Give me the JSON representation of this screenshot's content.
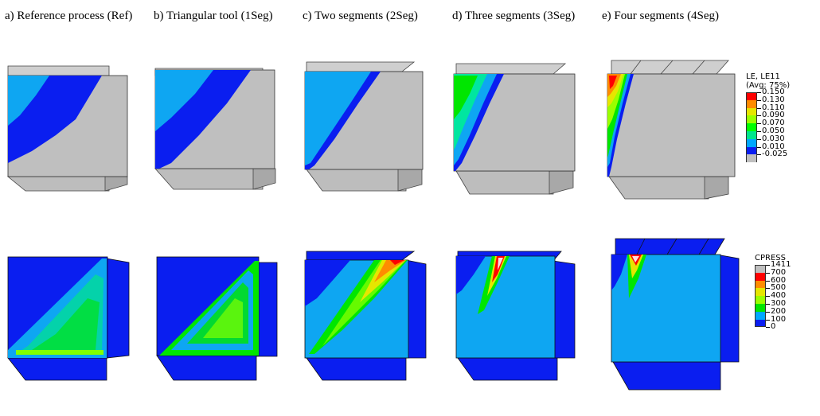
{
  "panels": [
    {
      "id": "a",
      "title": "a) Reference process (Ref)"
    },
    {
      "id": "b",
      "title": "b) Triangular tool (1Seg)"
    },
    {
      "id": "c",
      "title": "c) Two segments (2Seg)"
    },
    {
      "id": "d",
      "title": "d) Three segments (3Seg)"
    },
    {
      "id": "e",
      "title": "e) Four segments (4Seg)"
    }
  ],
  "legend_strain": {
    "title_line1": "LE, LE11",
    "title_line2": "(Avg: 75%)",
    "levels": [
      {
        "label": "0.150",
        "color": "#ff0000"
      },
      {
        "label": "0.130",
        "color": "#ff8c00"
      },
      {
        "label": "0.110",
        "color": "#e6e600"
      },
      {
        "label": "0.090",
        "color": "#9aff00"
      },
      {
        "label": "0.070",
        "color": "#00ff00"
      },
      {
        "label": "0.050",
        "color": "#00e68c"
      },
      {
        "label": "0.030",
        "color": "#00a8ff"
      },
      {
        "label": "0.010",
        "color": "#0a1ef0"
      },
      {
        "label": "-0.025",
        "color": "#bfbfbf"
      }
    ]
  },
  "legend_pressure": {
    "title_line1": "CPRESS",
    "levels": [
      {
        "label": "1411",
        "color": "#bfbfbf"
      },
      {
        "label": "700",
        "color": "#ff0000"
      },
      {
        "label": "600",
        "color": "#ff8c00"
      },
      {
        "label": "500",
        "color": "#e6e600"
      },
      {
        "label": "400",
        "color": "#9aff00"
      },
      {
        "label": "300",
        "color": "#00e600"
      },
      {
        "label": "200",
        "color": "#00a8ff"
      },
      {
        "label": "100",
        "color": "#0a1ef0"
      },
      {
        "label": "0",
        "color": ""
      }
    ]
  },
  "colors": {
    "grey": "#bfbfbf",
    "darkblue": "#0a1ef0",
    "lightblue": "#0ea6f2",
    "green": "#00e600",
    "lime": "#80ff00",
    "yellow": "#e6e600",
    "orange": "#ff8c00",
    "red": "#ff0000",
    "cyan": "#00e6a0"
  }
}
